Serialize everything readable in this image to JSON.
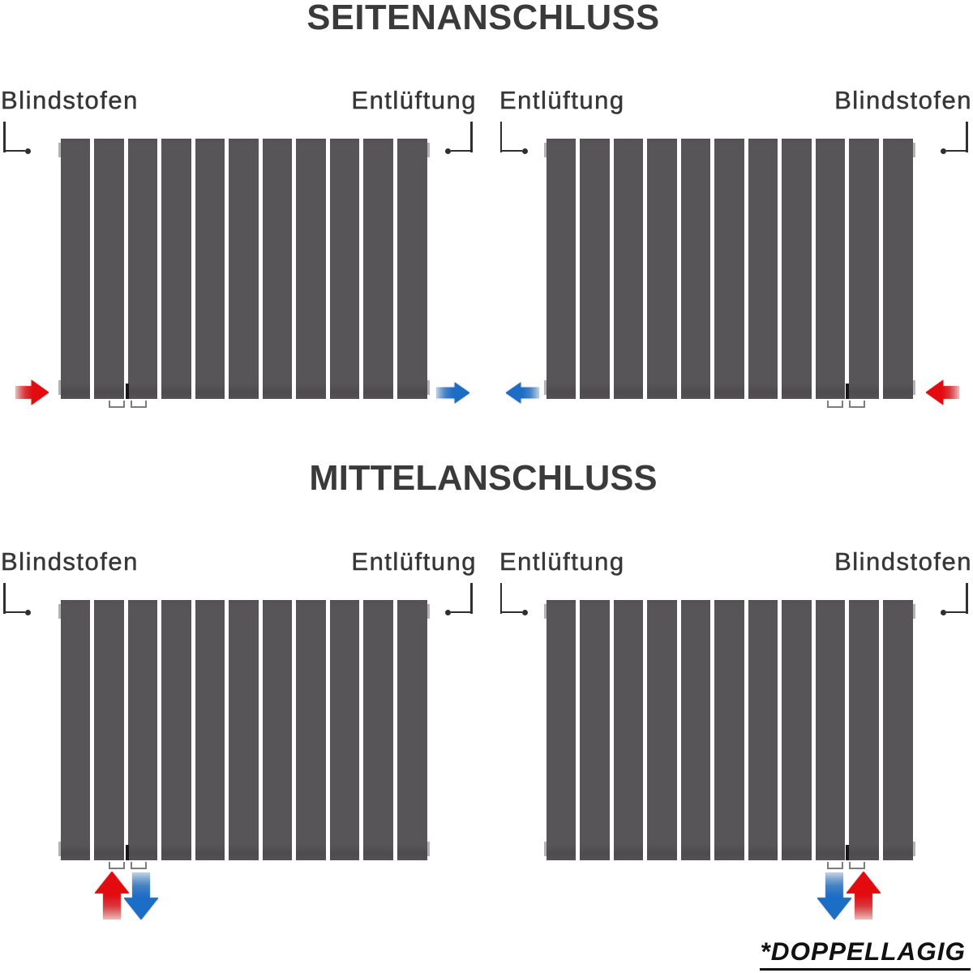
{
  "titles": {
    "top": "SEITENANSCHLUSS",
    "middle": "MITTELANSCHLUSS"
  },
  "footnote": "*DOPPELLAGIG",
  "colors": {
    "red": "#e30b10",
    "red_dark": "#8a0406",
    "blue": "#1b6dc6",
    "blue_dark": "#0e3f78",
    "panel_gray": "#585558",
    "text": "#373737",
    "leader": "#2f2f2f",
    "bracket_gray": "#b3b3b3",
    "foot_outline": "#7d7d7d"
  },
  "sections": [
    {
      "title": "SEITENANSCHLUSS",
      "radiators": [
        {
          "id": "top-left",
          "panels": 11,
          "label_left": "Blindstofen",
          "label_right": "Entlüftung",
          "inlet": {
            "color_name": "red",
            "position": "bottom-left",
            "direction": "right"
          },
          "outlet": {
            "color_name": "blue",
            "position": "bottom-right",
            "direction": "right"
          }
        },
        {
          "id": "top-right",
          "panels": 11,
          "label_left": "Entlüftung",
          "label_right": "Blindstofen",
          "inlet": {
            "color_name": "red",
            "position": "bottom-right",
            "direction": "left"
          },
          "outlet": {
            "color_name": "blue",
            "position": "bottom-left",
            "direction": "left"
          }
        }
      ]
    },
    {
      "title": "MITTELANSCHLUSS",
      "radiators": [
        {
          "id": "bottom-left",
          "panels": 11,
          "label_left": "Blindstofen",
          "label_right": "Entlüftung",
          "inlet": {
            "color_name": "red",
            "position": "bottom-center-left",
            "direction": "up"
          },
          "outlet": {
            "color_name": "blue",
            "position": "bottom-center-left",
            "direction": "down"
          }
        },
        {
          "id": "bottom-right",
          "panels": 11,
          "label_left": "Entlüftung",
          "label_right": "Blindstofen",
          "inlet": {
            "color_name": "red",
            "position": "bottom-center-right",
            "direction": "up"
          },
          "outlet": {
            "color_name": "blue",
            "position": "bottom-center-right",
            "direction": "down"
          }
        }
      ]
    }
  ]
}
